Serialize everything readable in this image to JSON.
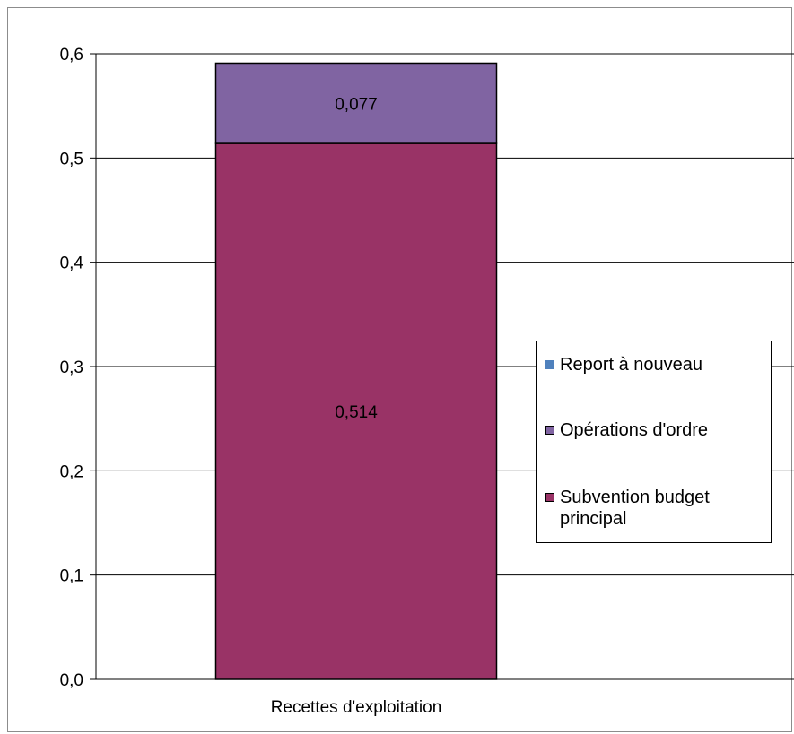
{
  "chart_data": {
    "type": "bar",
    "stacked": true,
    "categories": [
      "Recettes d'exploitation"
    ],
    "series": [
      {
        "name": "Subvention budget principal",
        "values": [
          0.514
        ],
        "color": "#993366",
        "value_labels": [
          "0,514"
        ]
      },
      {
        "name": "Opérations d'ordre",
        "values": [
          0.077
        ],
        "color": "#8064a2",
        "value_labels": [
          "0,077"
        ]
      },
      {
        "name": "Report à nouveau",
        "values": [
          0
        ],
        "color": "#4f81bd",
        "value_labels": [
          ""
        ]
      }
    ],
    "ylim": [
      0,
      0.6
    ],
    "y_ticks": [
      0,
      0.1,
      0.2,
      0.3,
      0.4,
      0.5,
      0.6
    ],
    "y_tick_labels": [
      "0,0",
      "0,1",
      "0,2",
      "0,3",
      "0,4",
      "0,5",
      "0,6"
    ],
    "grid": true,
    "legend": {
      "placement": "right",
      "order": [
        "Report à nouveau",
        "Opérations d'ordre",
        "Subvention budget principal"
      ]
    },
    "title": "",
    "xlabel": "",
    "ylabel": ""
  }
}
